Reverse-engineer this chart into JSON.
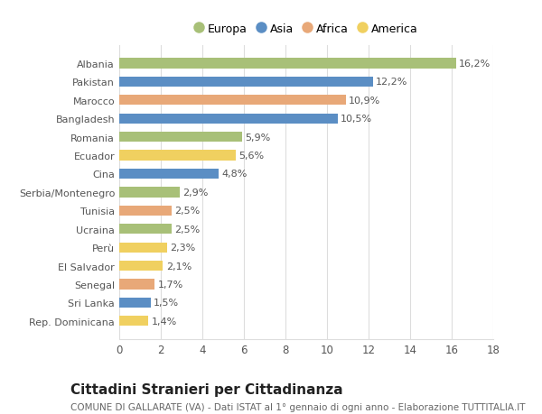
{
  "categories": [
    "Rep. Dominicana",
    "Sri Lanka",
    "Senegal",
    "El Salvador",
    "Perù",
    "Ucraina",
    "Tunisia",
    "Serbia/Montenegro",
    "Cina",
    "Ecuador",
    "Romania",
    "Bangladesh",
    "Marocco",
    "Pakistan",
    "Albania"
  ],
  "values": [
    1.4,
    1.5,
    1.7,
    2.1,
    2.3,
    2.5,
    2.5,
    2.9,
    4.8,
    5.6,
    5.9,
    10.5,
    10.9,
    12.2,
    16.2
  ],
  "colors": [
    "#f0d060",
    "#5b8ec4",
    "#e8a878",
    "#f0d060",
    "#f0d060",
    "#a8c078",
    "#e8a878",
    "#a8c078",
    "#5b8ec4",
    "#f0d060",
    "#a8c078",
    "#5b8ec4",
    "#e8a878",
    "#5b8ec4",
    "#a8c078"
  ],
  "labels": [
    "1,4%",
    "1,5%",
    "1,7%",
    "2,1%",
    "2,3%",
    "2,5%",
    "2,5%",
    "2,9%",
    "4,8%",
    "5,6%",
    "5,9%",
    "10,5%",
    "10,9%",
    "12,2%",
    "16,2%"
  ],
  "legend": [
    {
      "label": "Europa",
      "color": "#a8c078"
    },
    {
      "label": "Asia",
      "color": "#5b8ec4"
    },
    {
      "label": "Africa",
      "color": "#e8a878"
    },
    {
      "label": "America",
      "color": "#f0d060"
    }
  ],
  "xlim": [
    0,
    18
  ],
  "xticks": [
    0,
    2,
    4,
    6,
    8,
    10,
    12,
    14,
    16,
    18
  ],
  "title": "Cittadini Stranieri per Cittadinanza",
  "subtitle": "COMUNE DI GALLARATE (VA) - Dati ISTAT al 1° gennaio di ogni anno - Elaborazione TUTTITALIA.IT",
  "background_color": "#ffffff",
  "bar_height": 0.55,
  "grid_color": "#dddddd",
  "label_fontsize": 8,
  "ytick_fontsize": 8,
  "xtick_fontsize": 8.5,
  "title_fontsize": 11,
  "subtitle_fontsize": 7.5
}
